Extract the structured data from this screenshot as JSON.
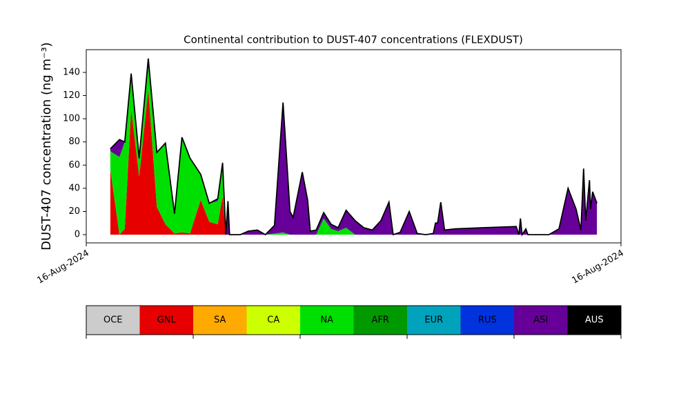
{
  "chart_data": {
    "type": "stacked-area",
    "title": "Continental contribution to DUST-407 concentrations (FLEXDUST)",
    "y_label": "DUST-407 concentration (ng m⁻³)",
    "x": [
      4.5,
      6.2,
      7.2,
      8.4,
      9.9,
      11.6,
      13.2,
      14.8,
      16.5,
      17.9,
      19.4,
      21.4,
      23.0,
      24.6,
      25.5,
      26.1,
      26.5,
      26.8,
      28.8,
      30.3,
      32.0,
      33.5,
      35.2,
      36.8,
      38.1,
      38.7,
      40.4,
      41.4,
      41.9,
      43.0,
      44.4,
      45.8,
      47.1,
      48.6,
      50.3,
      51.9,
      53.5,
      55.1,
      56.6,
      57.4,
      58.7,
      60.4,
      61.9,
      63.5,
      64.9,
      65.3,
      65.7,
      66.3,
      67.0,
      69.0,
      74.2,
      80.4,
      80.9,
      81.2,
      81.5,
      82.2,
      82.6,
      83.9,
      86.5,
      88.4,
      90.1,
      91.6,
      92.5,
      93.0,
      93.4,
      94.1,
      94.3,
      94.7,
      95.5
    ],
    "series": [
      {
        "name": "GNL",
        "color": "#e60000",
        "values": [
          56,
          0,
          5,
          108,
          50,
          125,
          24,
          9,
          1,
          2,
          1,
          30,
          11,
          9,
          33,
          0,
          0,
          0,
          0,
          0,
          0,
          0,
          0,
          0,
          0,
          0,
          0,
          0,
          0,
          0,
          0,
          0,
          0,
          0,
          0,
          0,
          0,
          0,
          0,
          0,
          0,
          0,
          0,
          0,
          0,
          0,
          0,
          0,
          0,
          0,
          0,
          0,
          0,
          0,
          0,
          0,
          0,
          0,
          0,
          0,
          0,
          0,
          0,
          0,
          0,
          0,
          0,
          0,
          0
        ]
      },
      {
        "name": "NA",
        "color": "#00e000",
        "values": [
          16,
          67,
          75,
          29,
          14,
          20,
          47,
          70,
          17,
          82,
          65,
          22,
          16,
          20,
          27,
          0,
          0,
          0,
          0,
          0,
          0,
          0,
          1,
          2,
          0,
          0,
          0,
          0,
          0,
          0,
          14,
          5,
          3,
          6,
          0,
          0,
          0,
          0,
          0,
          0,
          0,
          0,
          0,
          0,
          0,
          0,
          0,
          0,
          0,
          0,
          0,
          0,
          0,
          0,
          0,
          0,
          0,
          0,
          0,
          0,
          0,
          0,
          0,
          0,
          0,
          0,
          0,
          0,
          0
        ]
      },
      {
        "name": "ASI",
        "color": "#660099",
        "values": [
          2,
          15,
          0,
          2,
          2,
          7,
          0,
          0,
          0,
          0,
          0,
          0,
          0,
          2,
          2,
          0,
          29,
          0,
          0,
          3,
          4,
          0,
          7,
          112,
          20,
          15,
          54,
          30,
          3,
          4,
          5,
          4,
          3,
          15,
          12,
          6,
          4,
          12,
          28,
          0,
          2,
          20,
          1,
          0,
          1,
          10,
          10,
          28,
          4,
          5,
          6,
          7,
          0,
          14,
          0,
          5,
          0,
          0,
          0,
          5,
          40,
          22,
          4,
          57,
          12,
          47,
          22,
          37,
          27
        ]
      }
    ],
    "xlim": [
      0,
      100
    ],
    "xticks": [
      {
        "value": 0,
        "label": "16-Aug-2024"
      },
      {
        "value": 100,
        "label": "16-Aug-2024"
      }
    ],
    "ylim": [
      -7.1,
      159.6
    ],
    "yticks": [
      0,
      20,
      40,
      60,
      80,
      100,
      120,
      140
    ],
    "grid": false,
    "colorbar": [
      {
        "label": "OCE",
        "color": "#cccccc"
      },
      {
        "label": "GNL",
        "color": "#e60000"
      },
      {
        "label": "SA",
        "color": "#ffaa00"
      },
      {
        "label": "CA",
        "color": "#ccff00"
      },
      {
        "label": "NA",
        "color": "#00e000"
      },
      {
        "label": "AFR",
        "color": "#009900"
      },
      {
        "label": "EUR",
        "color": "#00a3bb"
      },
      {
        "label": "RUS",
        "color": "#0033dd"
      },
      {
        "label": "ASI",
        "color": "#660099"
      },
      {
        "label": "AUS",
        "color": "#000000"
      }
    ]
  }
}
